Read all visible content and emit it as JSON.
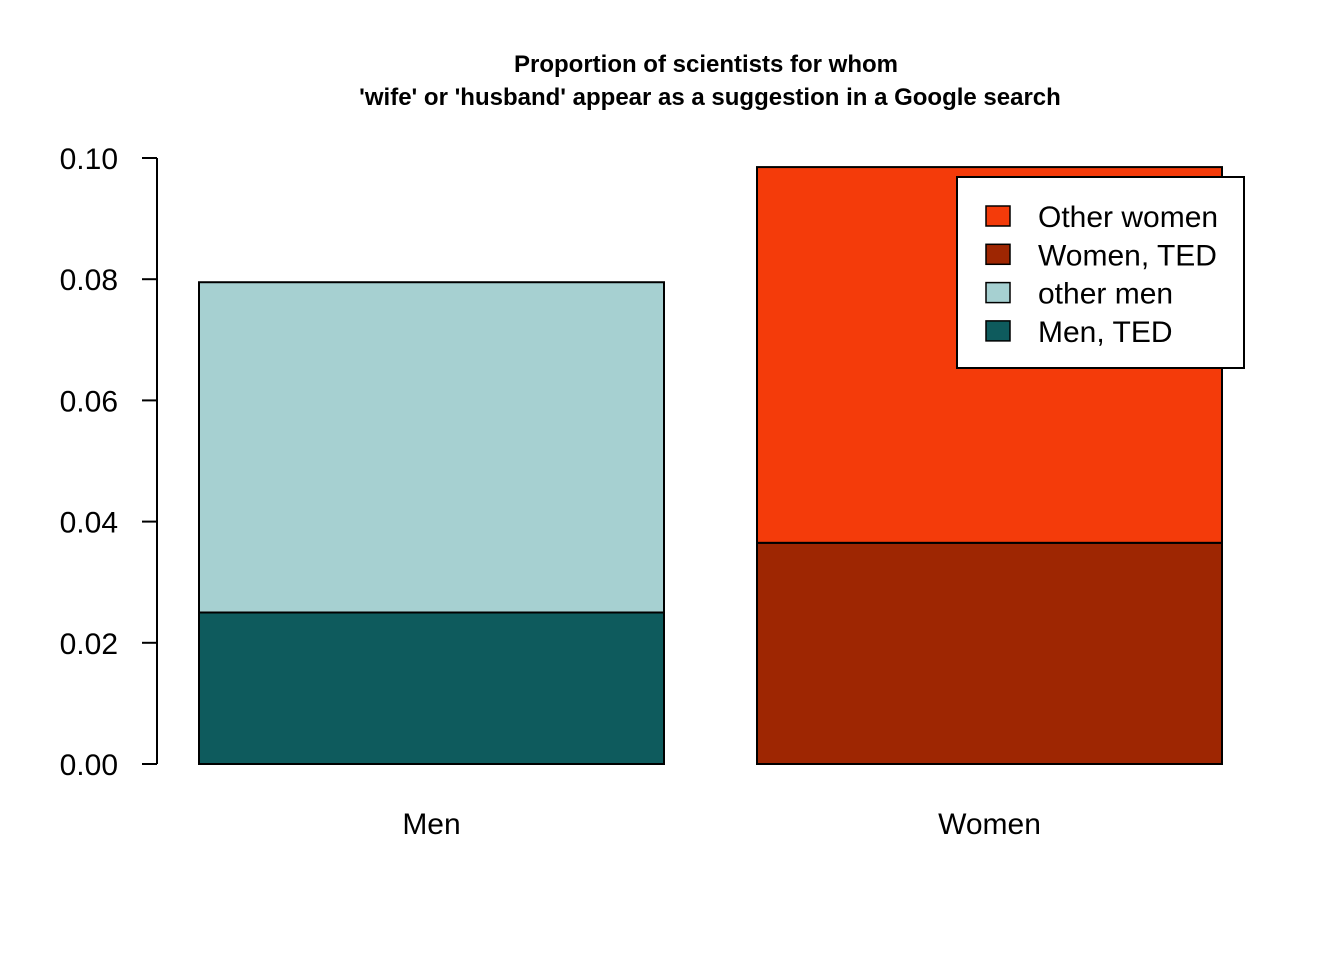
{
  "chart_data": {
    "type": "bar",
    "stacked": true,
    "title_lines": [
      "Proportion of scientists for whom",
      "'wife' or 'husband' appear as a suggestion in a Google search"
    ],
    "xlabel": "",
    "ylabel": "",
    "ylim": [
      0,
      0.1
    ],
    "y_ticks": [
      "0.00",
      "0.02",
      "0.04",
      "0.06",
      "0.08",
      "0.10"
    ],
    "y_tick_values": [
      0,
      0.02,
      0.04,
      0.06,
      0.08,
      0.1
    ],
    "grid": false,
    "legend_position": "top-right",
    "categories": [
      "Men",
      "Women"
    ],
    "bars": [
      {
        "category": "Men",
        "segments": [
          {
            "name": "Men, TED",
            "value": 0.025,
            "color": "#0e5b5d"
          },
          {
            "name": "other men",
            "value": 0.0545,
            "color": "#a6d0d1"
          }
        ]
      },
      {
        "category": "Women",
        "segments": [
          {
            "name": "Women, TED",
            "value": 0.0365,
            "color": "#9e2602"
          },
          {
            "name": "Other women",
            "value": 0.062,
            "color": "#f43b0a"
          }
        ]
      }
    ],
    "legend": [
      {
        "label": "Other women",
        "color": "#f43b0a"
      },
      {
        "label": "Women, TED",
        "color": "#9e2602"
      },
      {
        "label": "other men",
        "color": "#a6d0d1"
      },
      {
        "label": "Men, TED",
        "color": "#0e5b5d"
      }
    ]
  }
}
